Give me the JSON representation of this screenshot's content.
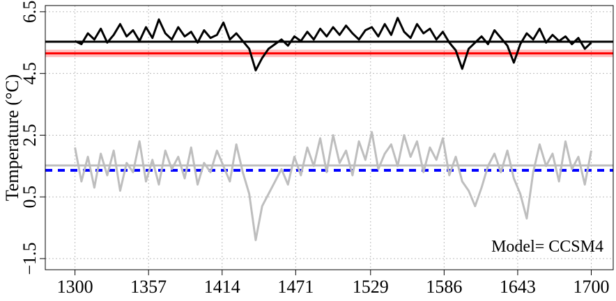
{
  "chart_data": {
    "type": "line",
    "y_label": "Temperature (°C)",
    "annotation": "Model= CCSM4",
    "x": [
      1300,
      1305,
      1310,
      1315,
      1320,
      1325,
      1330,
      1335,
      1340,
      1345,
      1350,
      1355,
      1360,
      1365,
      1370,
      1375,
      1380,
      1385,
      1390,
      1395,
      1400,
      1405,
      1410,
      1415,
      1420,
      1425,
      1430,
      1435,
      1440,
      1445,
      1450,
      1455,
      1460,
      1465,
      1470,
      1475,
      1480,
      1485,
      1490,
      1495,
      1500,
      1505,
      1510,
      1515,
      1520,
      1525,
      1530,
      1535,
      1540,
      1545,
      1550,
      1555,
      1560,
      1565,
      1570,
      1575,
      1580,
      1585,
      1590,
      1595,
      1600,
      1605,
      1610,
      1615,
      1620,
      1625,
      1630,
      1635,
      1640,
      1645,
      1650,
      1655,
      1660,
      1665,
      1670,
      1675,
      1680,
      1685,
      1690,
      1695,
      1700
    ],
    "series": [
      {
        "color": "#000000",
        "values": [
          5.55,
          5.45,
          5.8,
          5.6,
          5.95,
          5.5,
          5.75,
          6.1,
          5.7,
          5.9,
          5.55,
          6.0,
          5.65,
          6.25,
          5.8,
          5.6,
          6.0,
          5.7,
          5.85,
          5.5,
          5.9,
          5.65,
          5.75,
          6.15,
          5.6,
          5.8,
          5.55,
          5.3,
          4.6,
          5.0,
          5.3,
          5.45,
          5.6,
          5.4,
          5.7,
          5.55,
          5.85,
          5.6,
          5.95,
          5.7,
          6.0,
          5.75,
          6.05,
          5.8,
          5.6,
          5.9,
          6.0,
          5.7,
          6.1,
          5.75,
          6.3,
          5.85,
          5.65,
          6.1,
          5.8,
          5.95,
          5.6,
          5.85,
          5.5,
          5.25,
          4.65,
          5.3,
          5.5,
          5.7,
          5.45,
          5.9,
          5.65,
          5.4,
          4.85,
          5.45,
          5.8,
          5.6,
          5.95,
          5.5,
          5.75,
          5.55,
          5.7,
          5.45,
          5.65,
          5.3,
          5.5
        ]
      },
      {
        "color": "#bebebe",
        "values": [
          2.1,
          1.0,
          1.8,
          0.8,
          1.9,
          1.2,
          2.0,
          0.7,
          1.6,
          1.3,
          2.3,
          1.0,
          1.7,
          0.9,
          2.0,
          1.4,
          1.8,
          1.1,
          2.1,
          0.9,
          1.6,
          1.3,
          2.0,
          1.5,
          1.0,
          2.2,
          1.3,
          0.6,
          -0.9,
          0.2,
          0.6,
          1.0,
          1.4,
          0.9,
          1.8,
          1.2,
          2.1,
          1.5,
          2.4,
          1.3,
          2.5,
          1.6,
          2.0,
          1.2,
          2.3,
          1.7,
          2.6,
          1.4,
          1.9,
          2.2,
          1.5,
          2.5,
          1.8,
          2.3,
          1.3,
          2.1,
          1.7,
          2.4,
          1.2,
          1.8,
          1.0,
          0.7,
          0.2,
          0.8,
          1.5,
          1.9,
          1.3,
          2.0,
          1.1,
          0.6,
          -0.2,
          1.3,
          2.2,
          1.5,
          1.9,
          1.0,
          2.3,
          1.4,
          1.8,
          0.9,
          2.0
        ]
      }
    ],
    "reference_lines": [
      {
        "value": 5.53,
        "color": "#000000"
      },
      {
        "value": 5.15,
        "color": "#ff0000",
        "band": 0.12
      },
      {
        "value": 1.52,
        "color": "#bebebe"
      },
      {
        "value": 1.36,
        "color": "#0000ff",
        "dashed": true
      }
    ],
    "xlim": [
      1277,
      1717
    ],
    "ylim": [
      -1.86,
      6.7
    ],
    "xticks": [
      1300,
      1357,
      1414,
      1471,
      1529,
      1586,
      1643,
      1700
    ],
    "yticks": [
      {
        "value": -1.5,
        "label": "−1.5"
      },
      0.5,
      2.5,
      4.5,
      6.5
    ],
    "grid": true
  }
}
